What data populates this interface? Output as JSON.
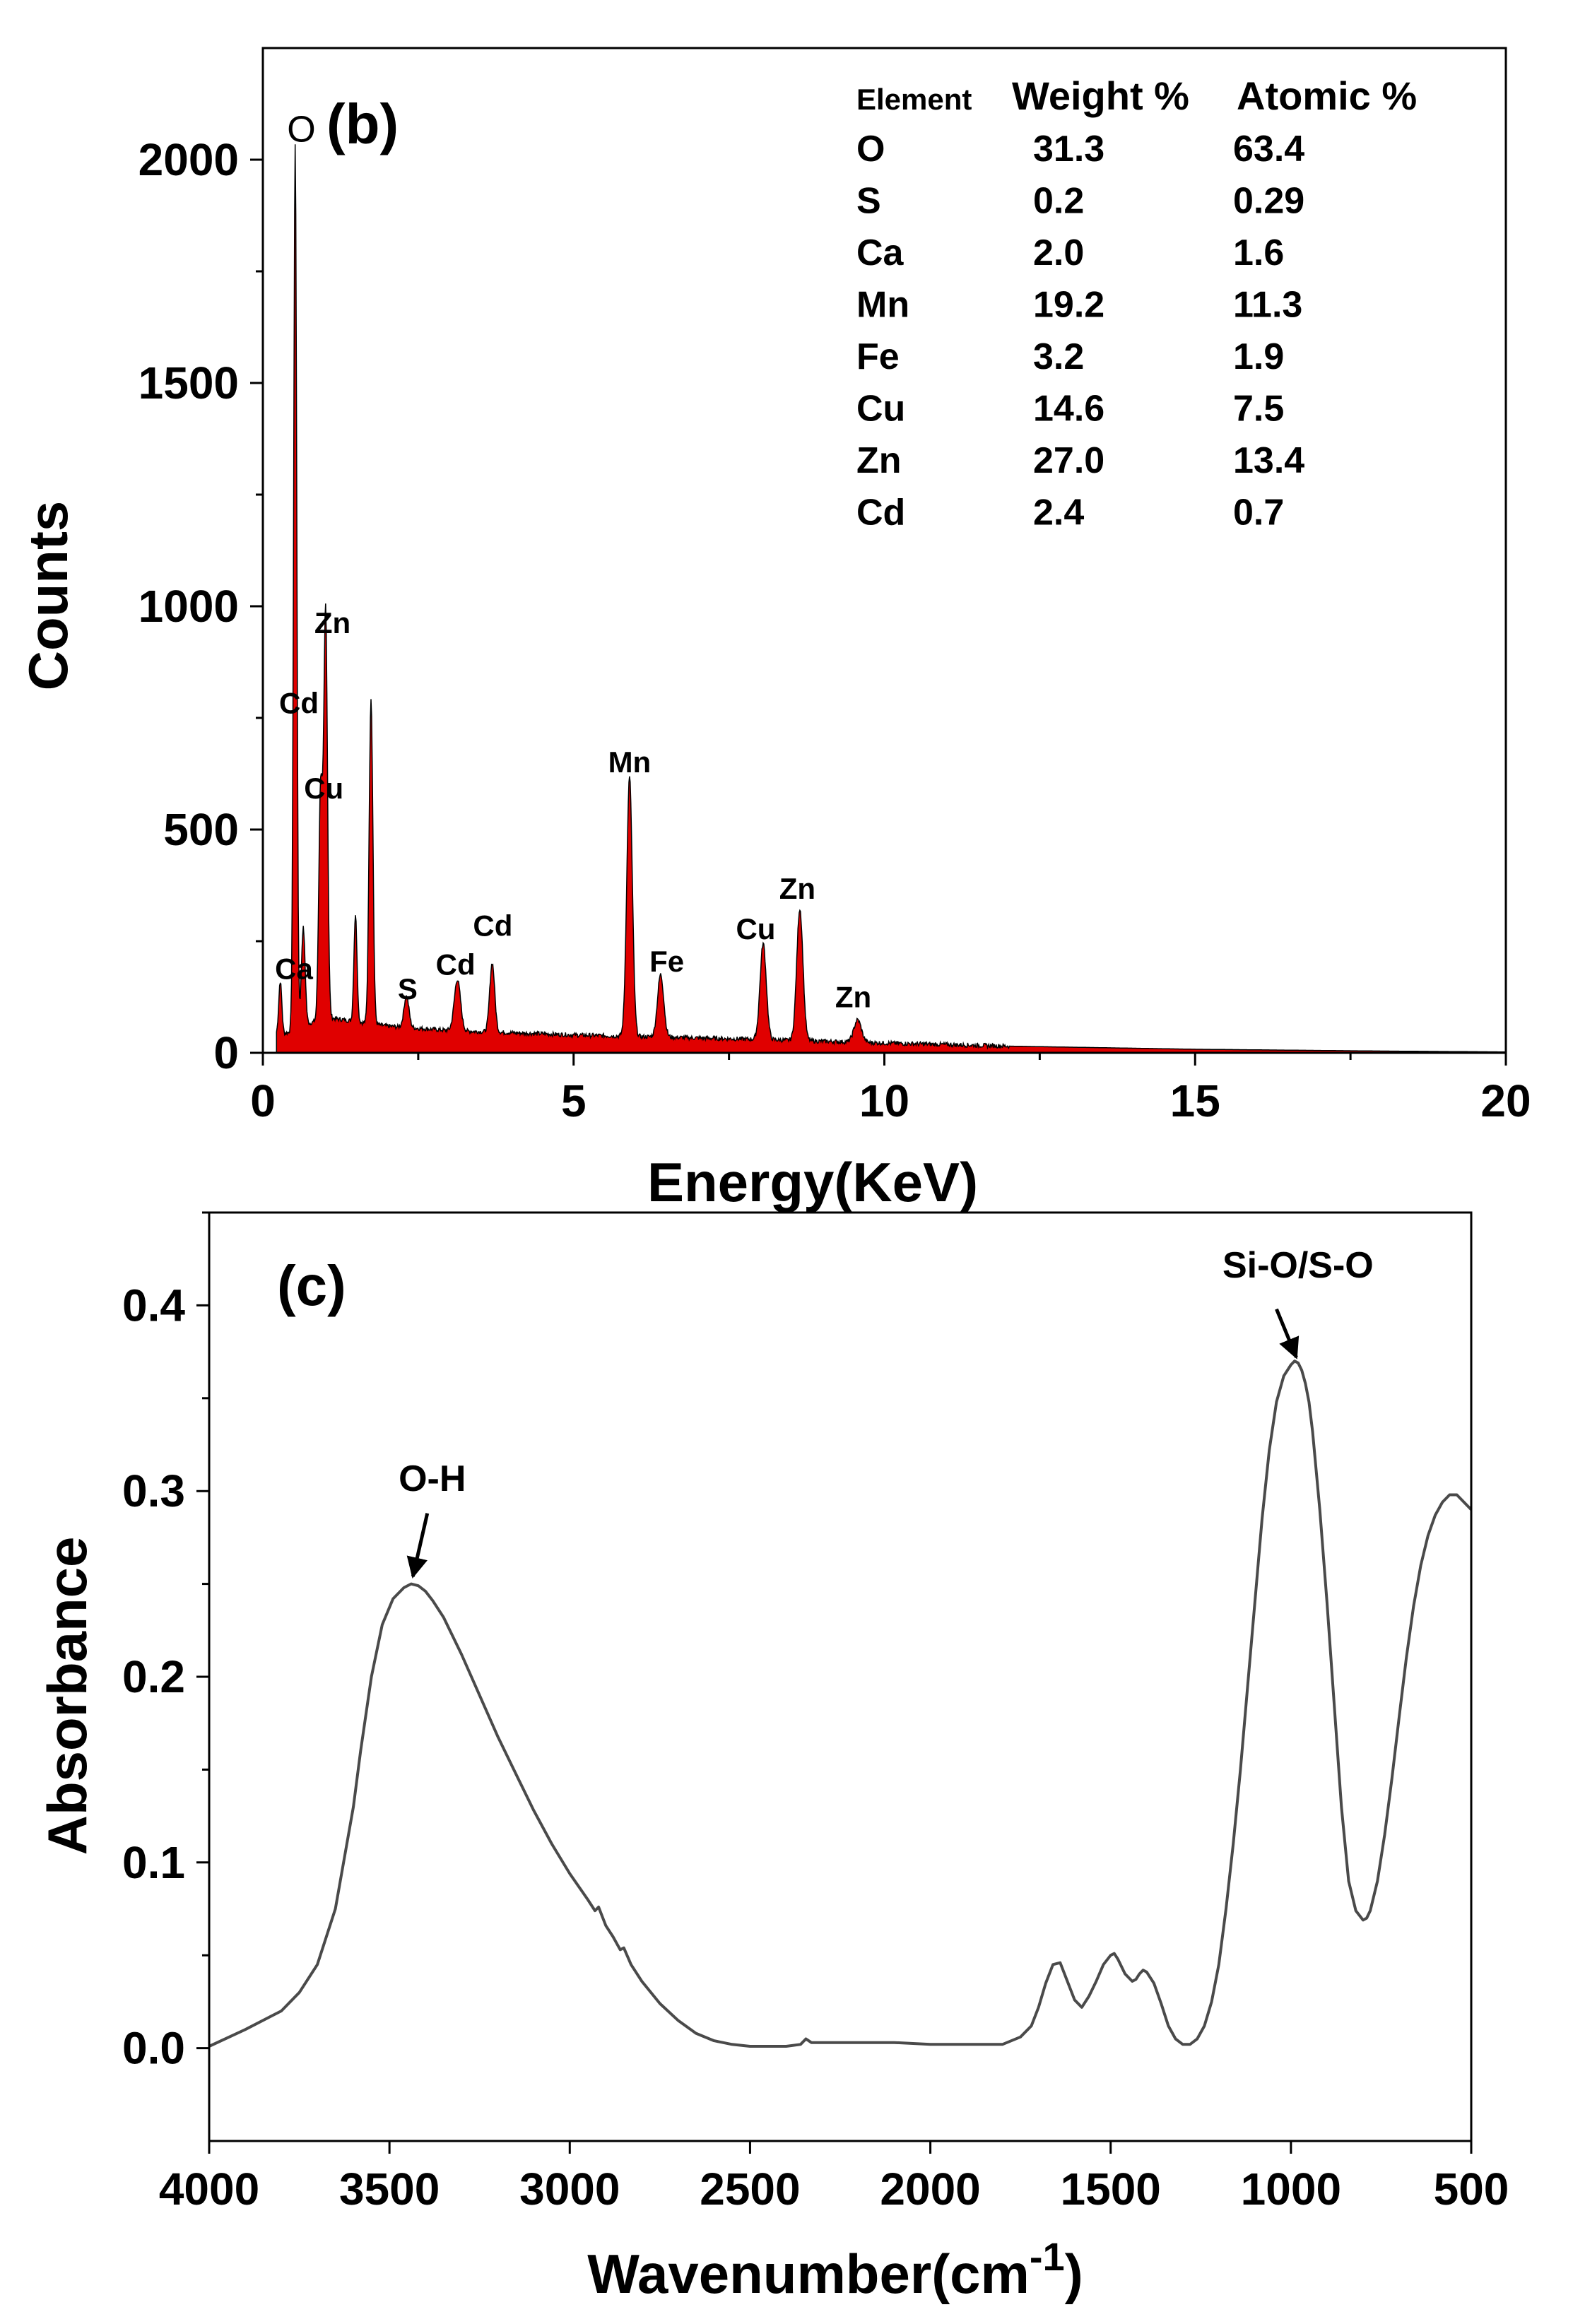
{
  "chart_data": [
    {
      "type": "area",
      "panel_label": "(b)",
      "xlabel": "Energy(KeV)",
      "ylabel": "Counts",
      "xlim": [
        0,
        20
      ],
      "ylim": [
        0,
        2250
      ],
      "x_ticks": [
        "0",
        "5",
        "10",
        "15",
        "20"
      ],
      "y_ticks": [
        "0",
        "500",
        "1000",
        "1500",
        "2000"
      ],
      "fill_color": "#e00000",
      "baseline": [
        [
          0.3,
          40
        ],
        [
          1,
          80
        ],
        [
          2,
          60
        ],
        [
          3,
          50
        ],
        [
          5,
          40
        ],
        [
          8,
          30
        ],
        [
          10,
          22
        ],
        [
          12,
          15
        ],
        [
          15,
          8
        ],
        [
          18,
          4
        ],
        [
          20,
          2
        ]
      ],
      "peaks": [
        {
          "x": 0.28,
          "y": 120,
          "w": 0.025
        },
        {
          "x": 0.52,
          "y": 1980,
          "w": 0.025
        },
        {
          "x": 0.65,
          "y": 220,
          "w": 0.03
        },
        {
          "x": 0.93,
          "y": 520,
          "w": 0.03
        },
        {
          "x": 1.01,
          "y": 910,
          "w": 0.03
        },
        {
          "x": 1.49,
          "y": 240,
          "w": 0.025
        },
        {
          "x": 1.74,
          "y": 730,
          "w": 0.03
        },
        {
          "x": 2.31,
          "y": 70,
          "w": 0.04
        },
        {
          "x": 3.13,
          "y": 115,
          "w": 0.05
        },
        {
          "x": 3.69,
          "y": 155,
          "w": 0.04
        },
        {
          "x": 5.9,
          "y": 580,
          "w": 0.045
        },
        {
          "x": 6.4,
          "y": 140,
          "w": 0.05
        },
        {
          "x": 8.05,
          "y": 215,
          "w": 0.05
        },
        {
          "x": 8.64,
          "y": 295,
          "w": 0.05
        },
        {
          "x": 9.57,
          "y": 50,
          "w": 0.06
        }
      ],
      "annotations": [
        {
          "text": "O",
          "x": 0.62,
          "y": 2040
        },
        {
          "text": "Zn",
          "x": 1.12,
          "y": 940
        },
        {
          "text": "Cd",
          "x": 0.58,
          "y": 760
        },
        {
          "text": "Cu",
          "x": 0.98,
          "y": 570
        },
        {
          "text": "Ca",
          "x": 0.5,
          "y": 165
        },
        {
          "text": "S",
          "x": 2.33,
          "y": 120
        },
        {
          "text": "Cd",
          "x": 3.1,
          "y": 175
        },
        {
          "text": "Cd",
          "x": 3.7,
          "y": 262
        },
        {
          "text": "Mn",
          "x": 5.9,
          "y": 628
        },
        {
          "text": "Fe",
          "x": 6.5,
          "y": 182
        },
        {
          "text": "Cu",
          "x": 7.93,
          "y": 255
        },
        {
          "text": "Zn",
          "x": 8.6,
          "y": 345
        },
        {
          "text": "Zn",
          "x": 9.5,
          "y": 102
        }
      ],
      "table": {
        "headers": [
          "Element",
          "Weight %",
          "Atomic %"
        ],
        "rows": [
          [
            "O",
            "31.3",
            "63.4"
          ],
          [
            "S",
            "0.2",
            "0.29"
          ],
          [
            "Ca",
            "2.0",
            "1.6"
          ],
          [
            "Mn",
            "19.2",
            "11.3"
          ],
          [
            "Fe",
            "3.2",
            "1.9"
          ],
          [
            "Cu",
            "14.6",
            "7.5"
          ],
          [
            "Zn",
            "27.0",
            "13.4"
          ],
          [
            "Cd",
            "2.4",
            "0.7"
          ]
        ]
      }
    },
    {
      "type": "line",
      "panel_label": "(c)",
      "xlabel": "Wavenumber(cm",
      "xlabel_superscript": "-1",
      "xlabel_suffix": ")",
      "ylabel": "Absorbance",
      "xlim": [
        4000,
        500
      ],
      "ylim": [
        -0.05,
        0.45
      ],
      "x_ticks": [
        "4000",
        "3500",
        "3000",
        "2500",
        "2000",
        "1500",
        "1000",
        "500"
      ],
      "y_ticks": [
        "0.0",
        "0.1",
        "0.2",
        "0.3",
        "0.4"
      ],
      "line_color": "#4a4a4a",
      "series": [
        {
          "x": [
            4000,
            3900,
            3800,
            3750,
            3700,
            3650,
            3600,
            3580,
            3550,
            3520,
            3490,
            3460,
            3440,
            3420,
            3400,
            3380,
            3350,
            3300,
            3250,
            3200,
            3150,
            3100,
            3050,
            3000,
            2950,
            2930,
            2920,
            2900,
            2880,
            2860,
            2850,
            2830,
            2800,
            2750,
            2700,
            2650,
            2600,
            2550,
            2500,
            2450,
            2400,
            2360,
            2345,
            2330,
            2300,
            2200,
            2100,
            2000,
            1900,
            1800,
            1750,
            1720,
            1700,
            1680,
            1660,
            1640,
            1620,
            1600,
            1580,
            1560,
            1540,
            1520,
            1500,
            1490,
            1480,
            1460,
            1440,
            1430,
            1420,
            1410,
            1400,
            1380,
            1360,
            1340,
            1320,
            1300,
            1280,
            1260,
            1240,
            1220,
            1200,
            1180,
            1160,
            1140,
            1120,
            1100,
            1080,
            1060,
            1040,
            1020,
            1000,
            990,
            980,
            970,
            960,
            950,
            940,
            920,
            900,
            880,
            860,
            840,
            820,
            800,
            790,
            780,
            760,
            740,
            720,
            700,
            680,
            660,
            640,
            620,
            600,
            580,
            560,
            540,
            520,
            500
          ],
          "y": [
            0.001,
            0.01,
            0.02,
            0.03,
            0.045,
            0.075,
            0.13,
            0.16,
            0.2,
            0.228,
            0.242,
            0.248,
            0.25,
            0.249,
            0.246,
            0.241,
            0.232,
            0.212,
            0.19,
            0.168,
            0.148,
            0.128,
            0.11,
            0.094,
            0.08,
            0.074,
            0.076,
            0.066,
            0.06,
            0.053,
            0.054,
            0.045,
            0.036,
            0.024,
            0.015,
            0.008,
            0.004,
            0.002,
            0.001,
            0.001,
            0.001,
            0.002,
            0.005,
            0.003,
            0.003,
            0.003,
            0.003,
            0.002,
            0.002,
            0.002,
            0.006,
            0.012,
            0.022,
            0.035,
            0.045,
            0.046,
            0.036,
            0.026,
            0.022,
            0.028,
            0.036,
            0.045,
            0.05,
            0.051,
            0.048,
            0.04,
            0.036,
            0.037,
            0.04,
            0.042,
            0.041,
            0.035,
            0.024,
            0.012,
            0.005,
            0.002,
            0.002,
            0.005,
            0.012,
            0.025,
            0.045,
            0.075,
            0.11,
            0.15,
            0.195,
            0.24,
            0.285,
            0.322,
            0.348,
            0.362,
            0.368,
            0.37,
            0.369,
            0.365,
            0.358,
            0.348,
            0.332,
            0.29,
            0.24,
            0.185,
            0.13,
            0.09,
            0.074,
            0.069,
            0.07,
            0.074,
            0.09,
            0.115,
            0.145,
            0.178,
            0.21,
            0.238,
            0.26,
            0.276,
            0.287,
            0.294,
            0.298,
            0.298,
            0.294,
            0.29
          ]
        }
      ],
      "annotations": [
        {
          "text": "O-H",
          "x": 3440,
          "y": 0.3
        },
        {
          "text": "Si-O/S-O",
          "x": 1000,
          "y": 0.415
        }
      ]
    }
  ]
}
